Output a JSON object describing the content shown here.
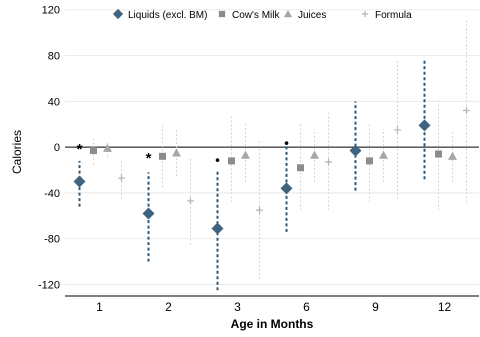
{
  "chart_data": {
    "type": "scatter",
    "xlabel": "Age in Months",
    "ylabel": "Calories",
    "categories": [
      "1",
      "2",
      "3",
      "6",
      "9",
      "12"
    ],
    "ylim": [
      -130,
      125
    ],
    "yticks": [
      120,
      80,
      40,
      0,
      -40,
      -80,
      -120
    ],
    "grid": true,
    "legend_position": "top",
    "series": [
      {
        "name": "Liquids (excl. BM)",
        "marker": "diamond",
        "color": "#3f6480",
        "values": [
          -30,
          -58,
          -71,
          -36,
          -3,
          19
        ],
        "ci_low": [
          -52,
          -100,
          -125,
          -74,
          -38,
          -28
        ],
        "ci_high": [
          -12,
          -22,
          -20,
          2,
          40,
          77
        ]
      },
      {
        "name": "Cow's Milk",
        "marker": "square",
        "color": "#8c8c8c",
        "values": [
          -3,
          -8,
          -12,
          -18,
          -12,
          -6
        ],
        "ci_low": [
          -15,
          -35,
          -48,
          -55,
          -48,
          -55
        ],
        "ci_high": [
          8,
          20,
          28,
          22,
          20,
          43
        ]
      },
      {
        "name": "Juices",
        "marker": "triangle",
        "color": "#a6a6a6",
        "values": [
          -1,
          -5,
          -7,
          -7,
          -7,
          -8
        ],
        "ci_low": [
          -8,
          -25,
          -30,
          -30,
          -30,
          -30
        ],
        "ci_high": [
          6,
          15,
          20,
          16,
          16,
          14
        ]
      },
      {
        "name": "Formula",
        "marker": "plus",
        "color": "#b3b3b3",
        "values": [
          -27,
          -47,
          -55,
          -13,
          15,
          32
        ],
        "ci_low": [
          -45,
          -85,
          -115,
          -55,
          -45,
          -48
        ],
        "ci_high": [
          -10,
          -10,
          5,
          30,
          75,
          112
        ]
      }
    ],
    "annotations": [
      {
        "category": "1",
        "value": 1,
        "text": "*"
      },
      {
        "category": "2",
        "value": -7,
        "text": "*"
      },
      {
        "category": "3",
        "value": -11,
        "text": "•"
      },
      {
        "category": "6",
        "value": 4,
        "text": "•"
      }
    ]
  }
}
